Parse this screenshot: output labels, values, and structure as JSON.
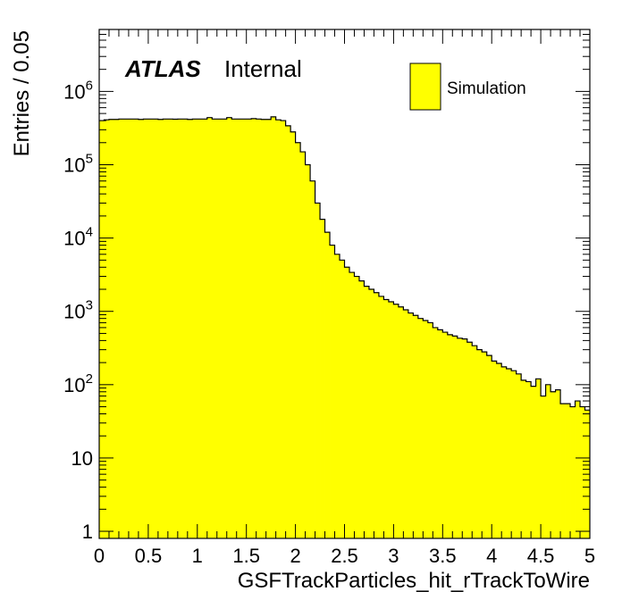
{
  "chart_data": {
    "type": "histogram",
    "xlabel": "GSFTrackParticles_hit_rTrackToWire",
    "ylabel": "Entries / 0.05",
    "xlim": [
      0,
      5
    ],
    "ylim": [
      0.8,
      7000000
    ],
    "y_scale": "log",
    "x_ticks": [
      {
        "value": 0,
        "label": "0"
      },
      {
        "value": 0.5,
        "label": "0.5"
      },
      {
        "value": 1,
        "label": "1"
      },
      {
        "value": 1.5,
        "label": "1.5"
      },
      {
        "value": 2,
        "label": "2"
      },
      {
        "value": 2.5,
        "label": "2.5"
      },
      {
        "value": 3,
        "label": "3"
      },
      {
        "value": 3.5,
        "label": "3.5"
      },
      {
        "value": 4,
        "label": "4"
      },
      {
        "value": 4.5,
        "label": "4.5"
      },
      {
        "value": 5,
        "label": "5"
      }
    ],
    "y_ticks": [
      {
        "value": 1,
        "base": "1",
        "exp": ""
      },
      {
        "value": 10,
        "base": "10",
        "exp": ""
      },
      {
        "value": 100,
        "base": "10",
        "exp": "2"
      },
      {
        "value": 1000,
        "base": "10",
        "exp": "3"
      },
      {
        "value": 10000,
        "base": "10",
        "exp": "4"
      },
      {
        "value": 100000,
        "base": "10",
        "exp": "5"
      },
      {
        "value": 1000000,
        "base": "10",
        "exp": "6"
      }
    ],
    "bin_width": 0.05,
    "series": [
      {
        "name": "Simulation",
        "color": "#ffff00",
        "edge_color": "#000000",
        "values": [
          400000,
          410000,
          415000,
          415000,
          420000,
          420000,
          420000,
          420000,
          415000,
          420000,
          420000,
          420000,
          415000,
          420000,
          420000,
          418000,
          420000,
          420000,
          415000,
          420000,
          420000,
          420000,
          440000,
          420000,
          420000,
          420000,
          440000,
          420000,
          420000,
          420000,
          420000,
          425000,
          420000,
          415000,
          415000,
          450000,
          410000,
          400000,
          340000,
          280000,
          200000,
          150000,
          100000,
          60000,
          30000,
          18000,
          12000,
          8000,
          6000,
          5000,
          4000,
          3400,
          3000,
          2600,
          2200,
          2000,
          1800,
          1600,
          1450,
          1350,
          1250,
          1150,
          1050,
          950,
          880,
          800,
          750,
          700,
          600,
          560,
          520,
          480,
          460,
          430,
          420,
          380,
          340,
          300,
          280,
          250,
          210,
          195,
          175,
          165,
          155,
          140,
          115,
          110,
          95,
          120,
          70,
          100,
          80,
          85,
          55,
          55,
          50,
          60,
          50,
          45
        ]
      }
    ],
    "annotations": {
      "atlas_label": "ATLAS",
      "atlas_status": "Internal"
    },
    "legend": {
      "placement": "top-right",
      "entries": [
        "Simulation"
      ]
    },
    "grid": false
  }
}
